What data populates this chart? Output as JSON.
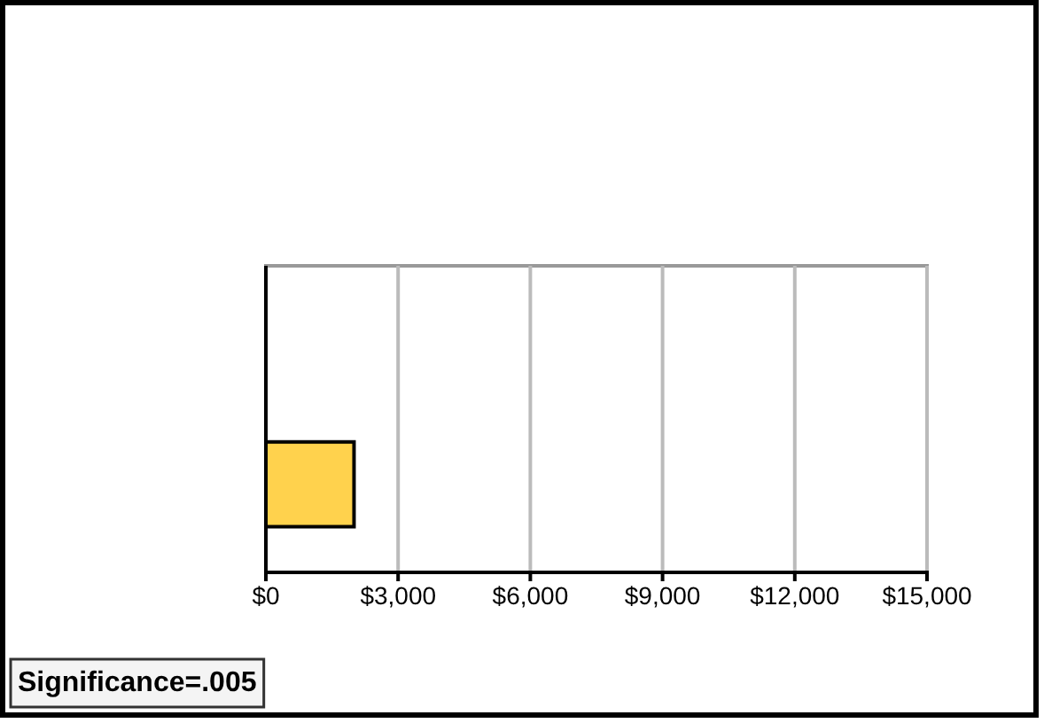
{
  "chart_data": {
    "type": "bar",
    "orientation": "horizontal",
    "categories": [
      null,
      null
    ],
    "series": [
      {
        "color": "#ffd24d",
        "values": [
          null,
          2000
        ]
      }
    ],
    "xlim": [
      0,
      15000
    ],
    "xticks": [
      {
        "value": 0,
        "label": "$0"
      },
      {
        "value": 3000,
        "label": "$3,000"
      },
      {
        "value": 6000,
        "label": "$6,000"
      },
      {
        "value": 9000,
        "label": "$9,000"
      },
      {
        "value": 12000,
        "label": "$12,000"
      },
      {
        "value": 15000,
        "label": "$15,000"
      }
    ],
    "grid": "x",
    "annotations": [
      "Significance=.005"
    ]
  }
}
